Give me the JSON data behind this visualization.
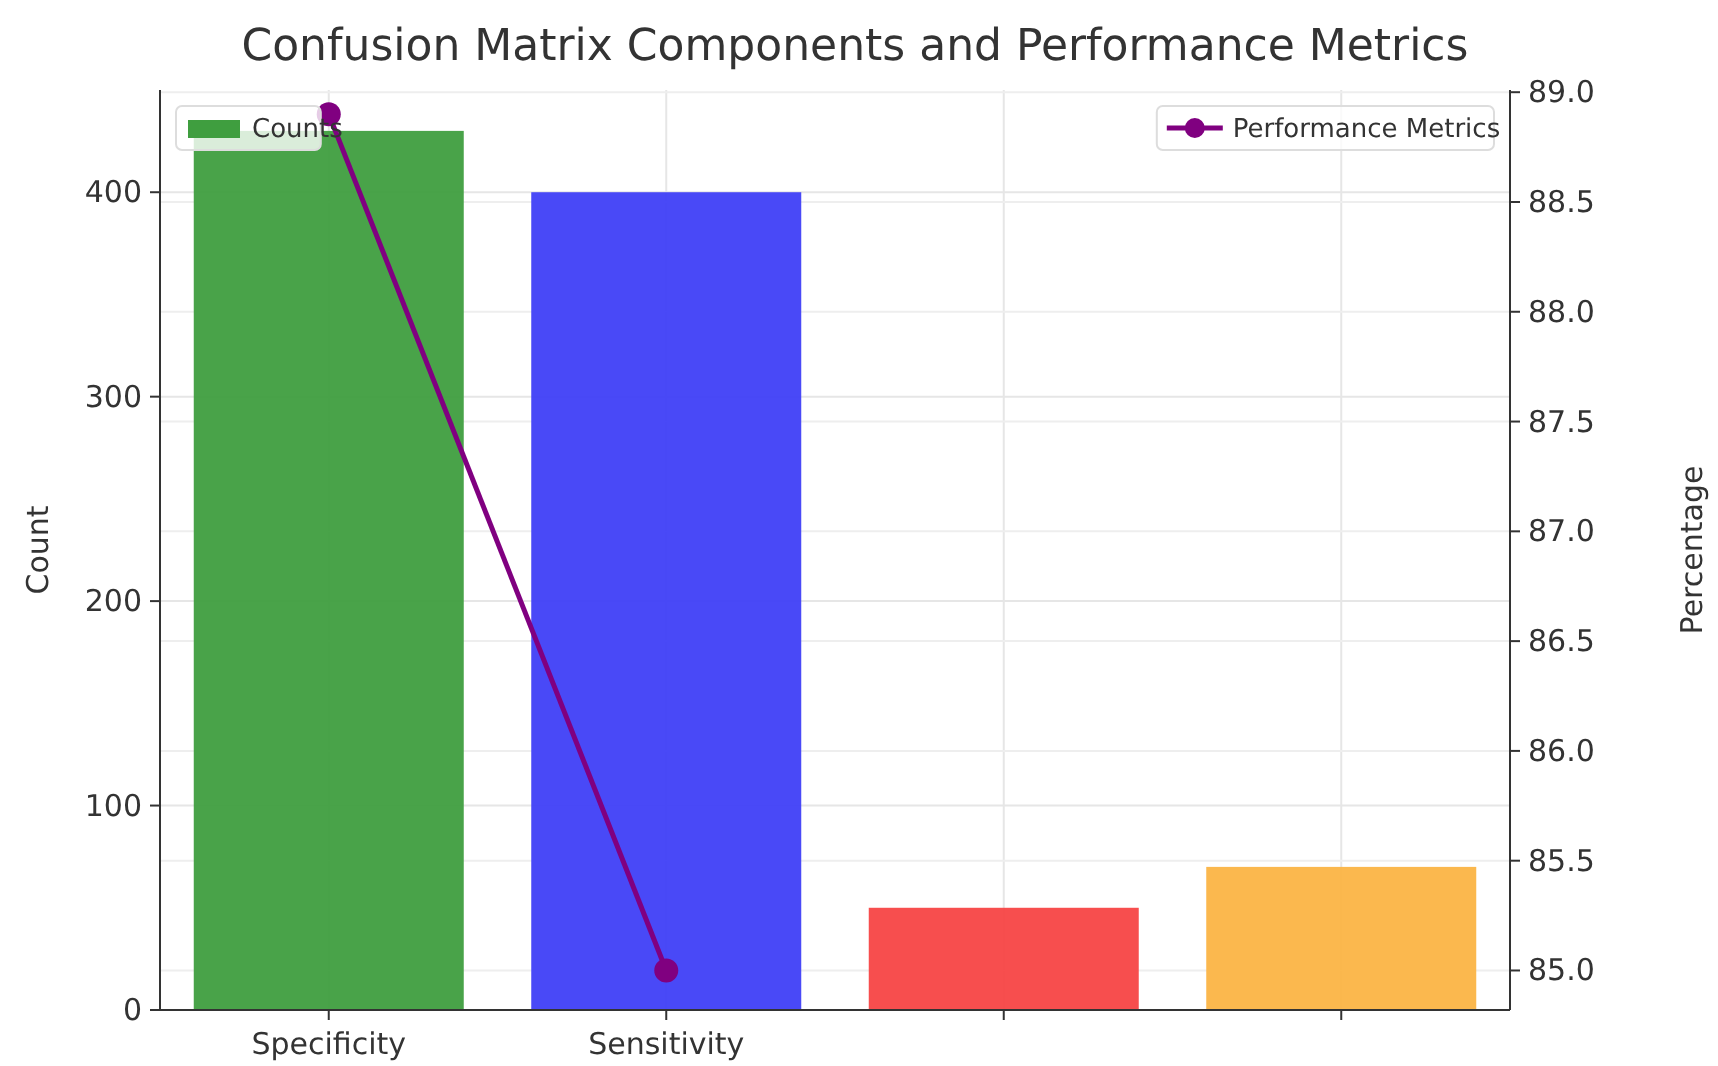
{
  "chart_data": {
    "type": "bar",
    "title": "Confusion Matrix Components and Performance Metrics",
    "ylabel": "Count",
    "y2label": "Percentage",
    "categories": [
      "Specificity",
      "Sensitivity",
      null,
      null
    ],
    "series": [
      {
        "name": "Counts",
        "color": "#3f9e3f",
        "colors": [
          "#3f9e3f",
          "#3f3ff7",
          "#f74444",
          "#fbb444"
        ],
        "values": [
          430,
          400,
          50,
          70
        ]
      },
      {
        "name": "Performance Metrics",
        "type": "line",
        "color": "#800080",
        "axis": "y2",
        "marker": "circle",
        "values": [
          88.9,
          85.0,
          null,
          null
        ]
      }
    ],
    "ylim": [
      0,
      450
    ],
    "yticks": [
      0,
      100,
      200,
      300,
      400
    ],
    "y2lim": [
      84.82,
      89.01
    ],
    "y2ticks": [
      {
        "value": 85,
        "label": "85.0"
      },
      85.5,
      {
        "value": 86,
        "label": "86.0"
      },
      86.5,
      {
        "value": 87,
        "label": "87.0"
      },
      87.5,
      {
        "value": 88,
        "label": "88.0"
      },
      88.5,
      {
        "value": 89,
        "label": "89.0"
      }
    ],
    "grid": true,
    "legend": "top"
  }
}
